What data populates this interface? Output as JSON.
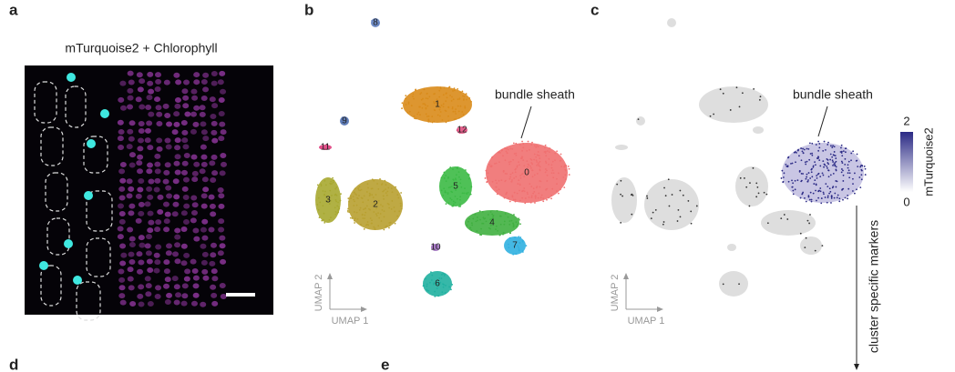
{
  "panels": {
    "a": {
      "label": "a",
      "title": "mTurquoise2 + Chlorophyll"
    },
    "b": {
      "label": "b",
      "annotation": "bundle sheath",
      "clusters": [
        "0",
        "1",
        "2",
        "3",
        "4",
        "5",
        "6",
        "7",
        "8",
        "9",
        "10",
        "11",
        "12"
      ],
      "axes": {
        "y": "UMAP 2",
        "x": "UMAP 1"
      }
    },
    "c": {
      "label": "c",
      "annotation": "bundle sheath",
      "axes": {
        "y": "UMAP 2",
        "x": "UMAP 1"
      },
      "colorbar": {
        "title": "mTurquoise2",
        "max": "2",
        "min": "0"
      }
    },
    "d": {
      "label": "d"
    },
    "e": {
      "label": "e"
    }
  },
  "side_label": "cluster specific markers"
}
